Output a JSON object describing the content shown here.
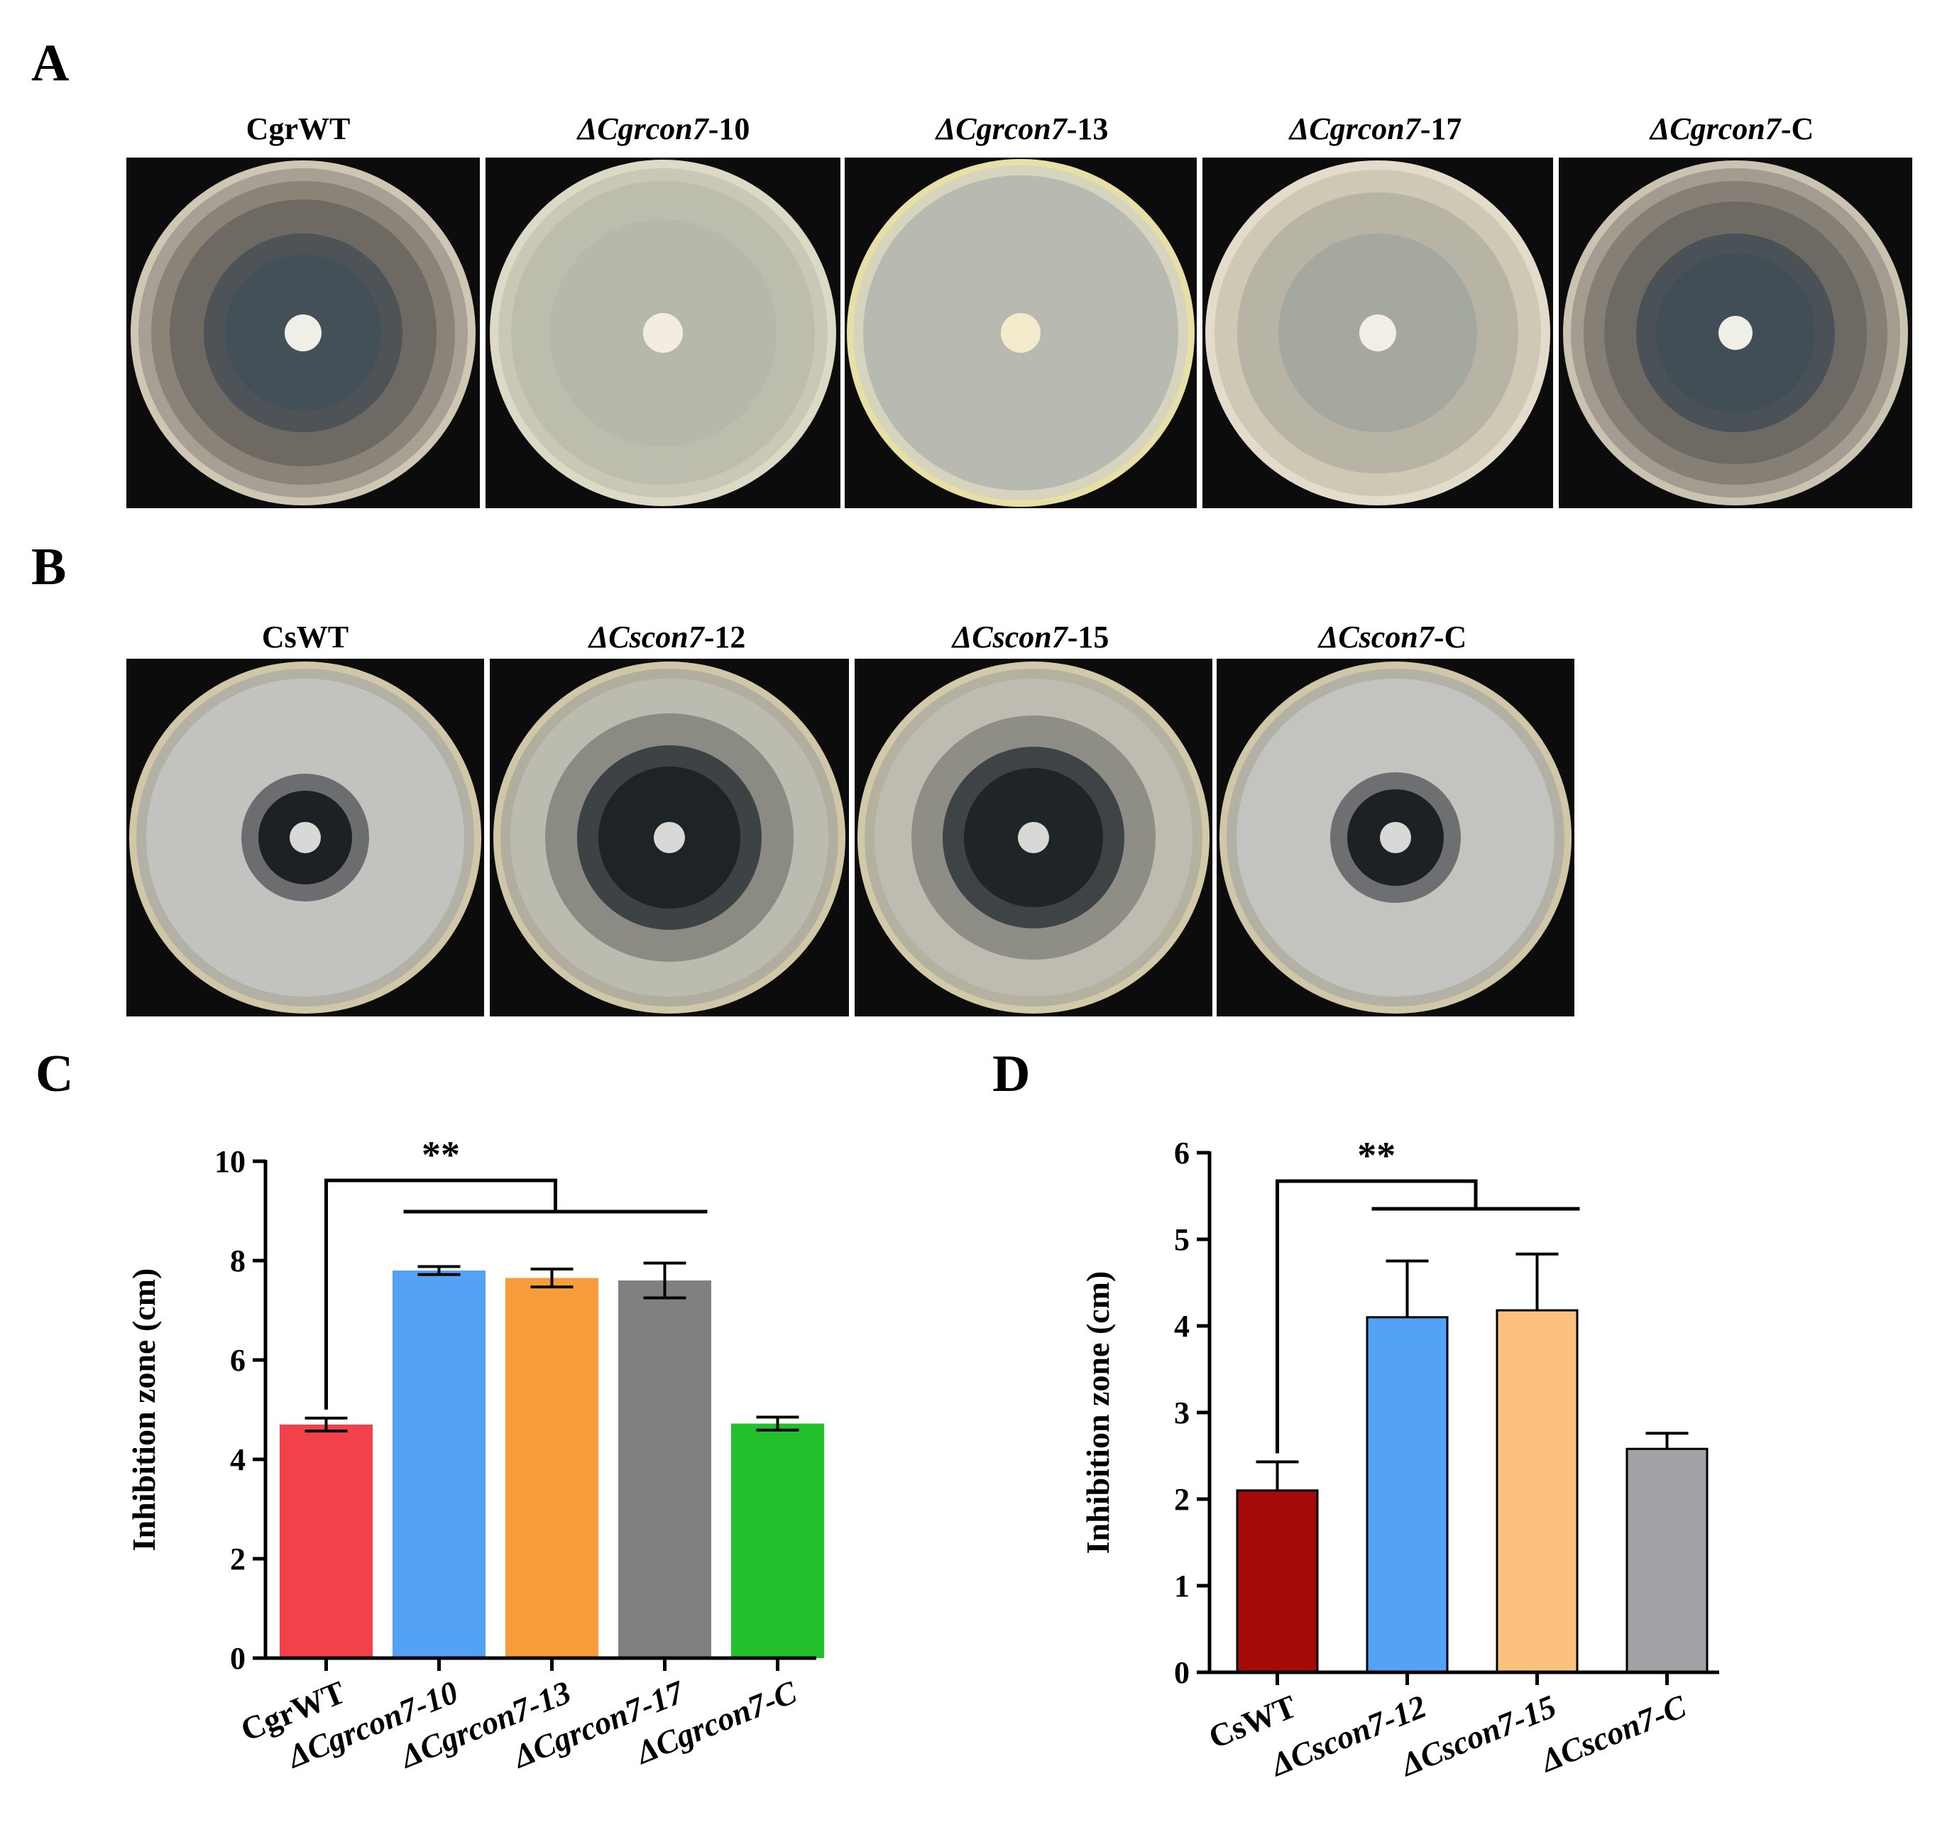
{
  "panels": {
    "A": "A",
    "B": "B",
    "C": "C",
    "D": "D"
  },
  "panelA": {
    "labels": [
      {
        "pre": "CgrWT",
        "ital": "",
        "post": ""
      },
      {
        "pre": "",
        "ital": "ΔCgrcon7",
        "post": "-10"
      },
      {
        "pre": "",
        "ital": "ΔCgrcon7",
        "post": "-13"
      },
      {
        "pre": "",
        "ital": "ΔCgrcon7",
        "post": "-17"
      },
      {
        "pre": "",
        "ital": "ΔCgrcon7",
        "post": "-C"
      }
    ]
  },
  "panelB": {
    "labels": [
      {
        "pre": "CsWT",
        "ital": "",
        "post": ""
      },
      {
        "pre": "",
        "ital": "ΔCscon7",
        "post": "-12"
      },
      {
        "pre": "",
        "ital": "ΔCscon7",
        "post": "-15"
      },
      {
        "pre": "",
        "ital": "ΔCscon7",
        "post": "-C"
      }
    ]
  },
  "chart_data": [
    {
      "type": "bar",
      "panel": "C",
      "ylabel": "Inhibition zone (cm)",
      "xlabel": "",
      "ylim": [
        0,
        10
      ],
      "yticks": [
        0,
        2,
        4,
        6,
        8,
        10
      ],
      "categories": [
        "CgrWT",
        "ΔCgrcon7-10",
        "ΔCgrcon7-13",
        "ΔCgrcon7-17",
        "ΔCgrcon7-C"
      ],
      "values": [
        4.7,
        7.8,
        7.65,
        7.6,
        4.72
      ],
      "errors": [
        0.13,
        0.08,
        0.18,
        0.35,
        0.13
      ],
      "colors": [
        "#f2414a",
        "#54a2f5",
        "#f99c3c",
        "#808080",
        "#22c12b"
      ],
      "significance": {
        "label": "**",
        "from": 0,
        "to": [
          1,
          2,
          3
        ]
      }
    },
    {
      "type": "bar",
      "panel": "D",
      "ylabel": "Inhibition zone (cm)",
      "xlabel": "",
      "ylim": [
        0,
        6
      ],
      "yticks": [
        0,
        1,
        2,
        3,
        4,
        5,
        6
      ],
      "categories": [
        "CsWT",
        "ΔCscon7-12",
        "ΔCscon7-15",
        "ΔCscon7-C"
      ],
      "values": [
        2.1,
        4.1,
        4.18,
        2.58
      ],
      "errors": [
        0.33,
        0.65,
        0.65,
        0.18
      ],
      "colors": [
        "#a40a0a",
        "#54a2f5",
        "#fdc17f",
        "#a1a1a6"
      ],
      "significance": {
        "label": "**",
        "from": 0,
        "to": [
          1,
          2
        ]
      }
    }
  ]
}
